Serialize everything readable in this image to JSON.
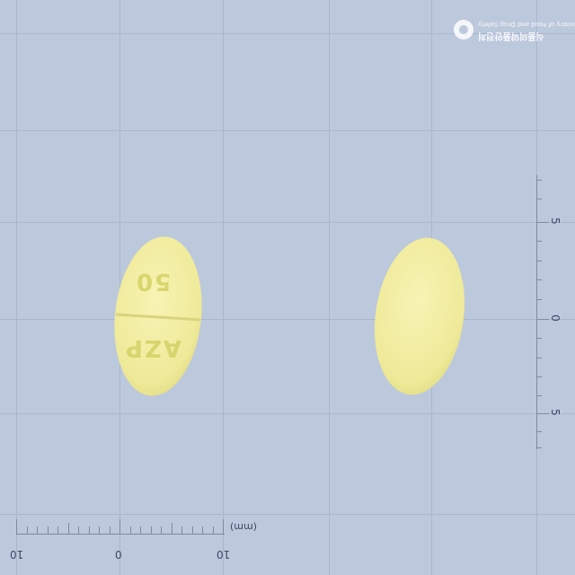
{
  "watermark": {
    "line1": "Ministry of Food and Drug Safety",
    "line2": "식품의약품안전처"
  },
  "ruler_bottom": {
    "labels": [
      "10",
      "0",
      "10"
    ],
    "unit": "(mm)"
  },
  "ruler_right": {
    "labels": [
      "5",
      "0",
      "5"
    ]
  },
  "pills": {
    "front": {
      "imprint_top": "50",
      "imprint_bottom": "AZP",
      "color": "#f2ed9e"
    },
    "back": {
      "color": "#f2ed9e"
    }
  },
  "colors": {
    "background": "#bcc8dc",
    "grid": "#a9b6cc"
  }
}
